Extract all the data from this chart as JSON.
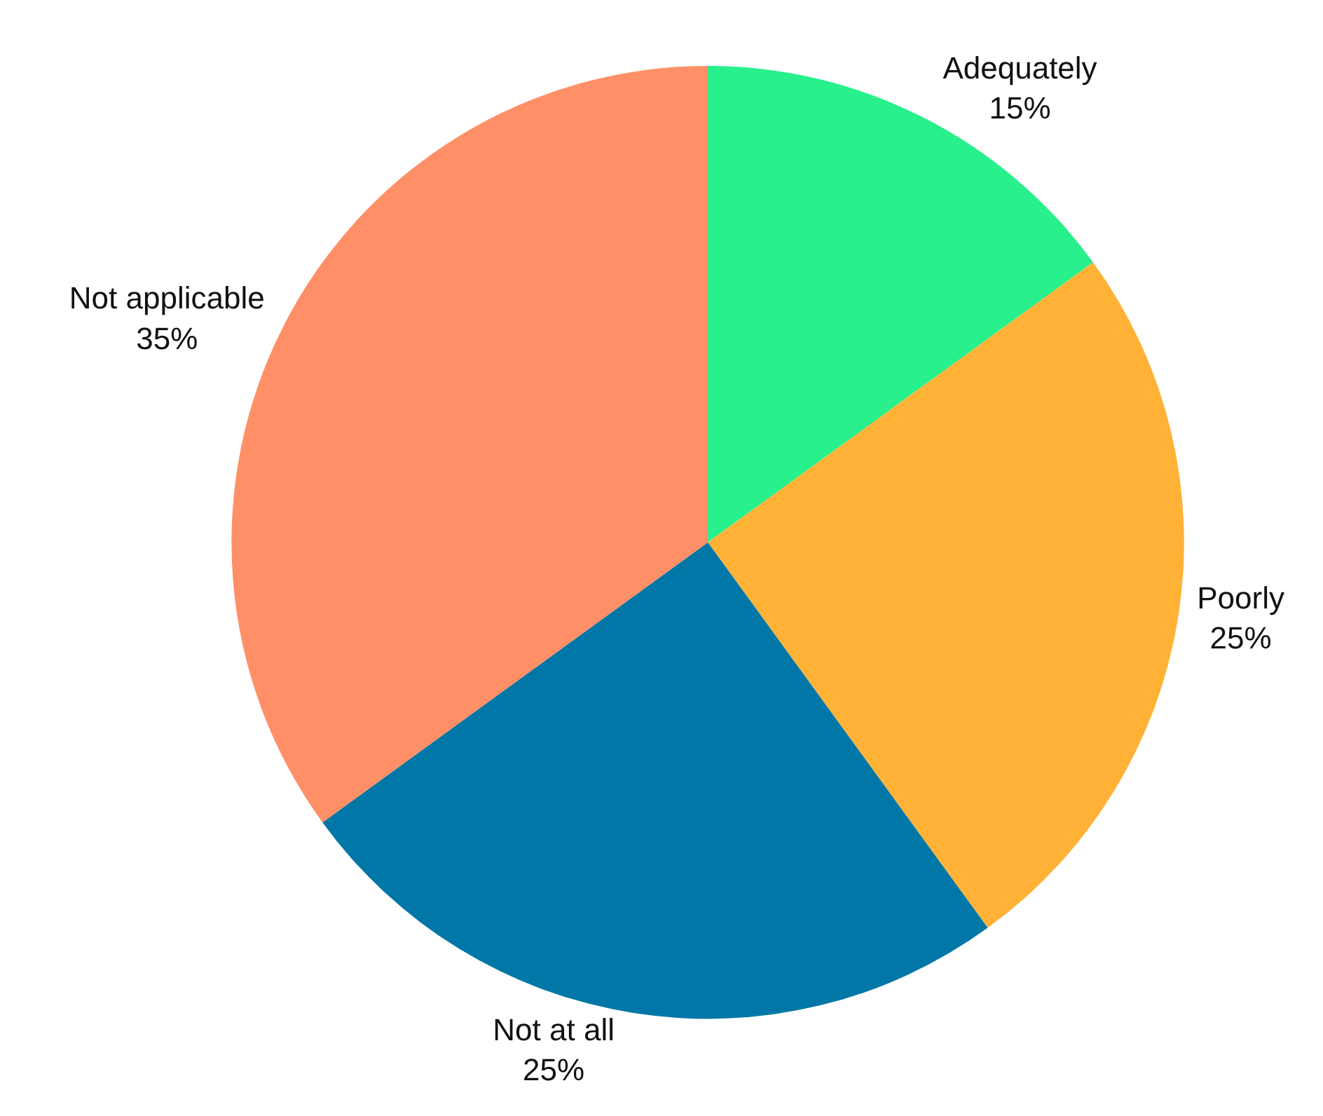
{
  "chart_data": {
    "type": "pie",
    "categories": [
      "Adequately",
      "Poorly",
      "Not at all",
      "Not applicable"
    ],
    "values": [
      15,
      25,
      25,
      35
    ],
    "value_labels": [
      "15%",
      "25%",
      "25%",
      "35%"
    ],
    "colors": [
      "#28f08c",
      "#ffb236",
      "#0077a6",
      "#ff8f66"
    ],
    "legend": false
  }
}
